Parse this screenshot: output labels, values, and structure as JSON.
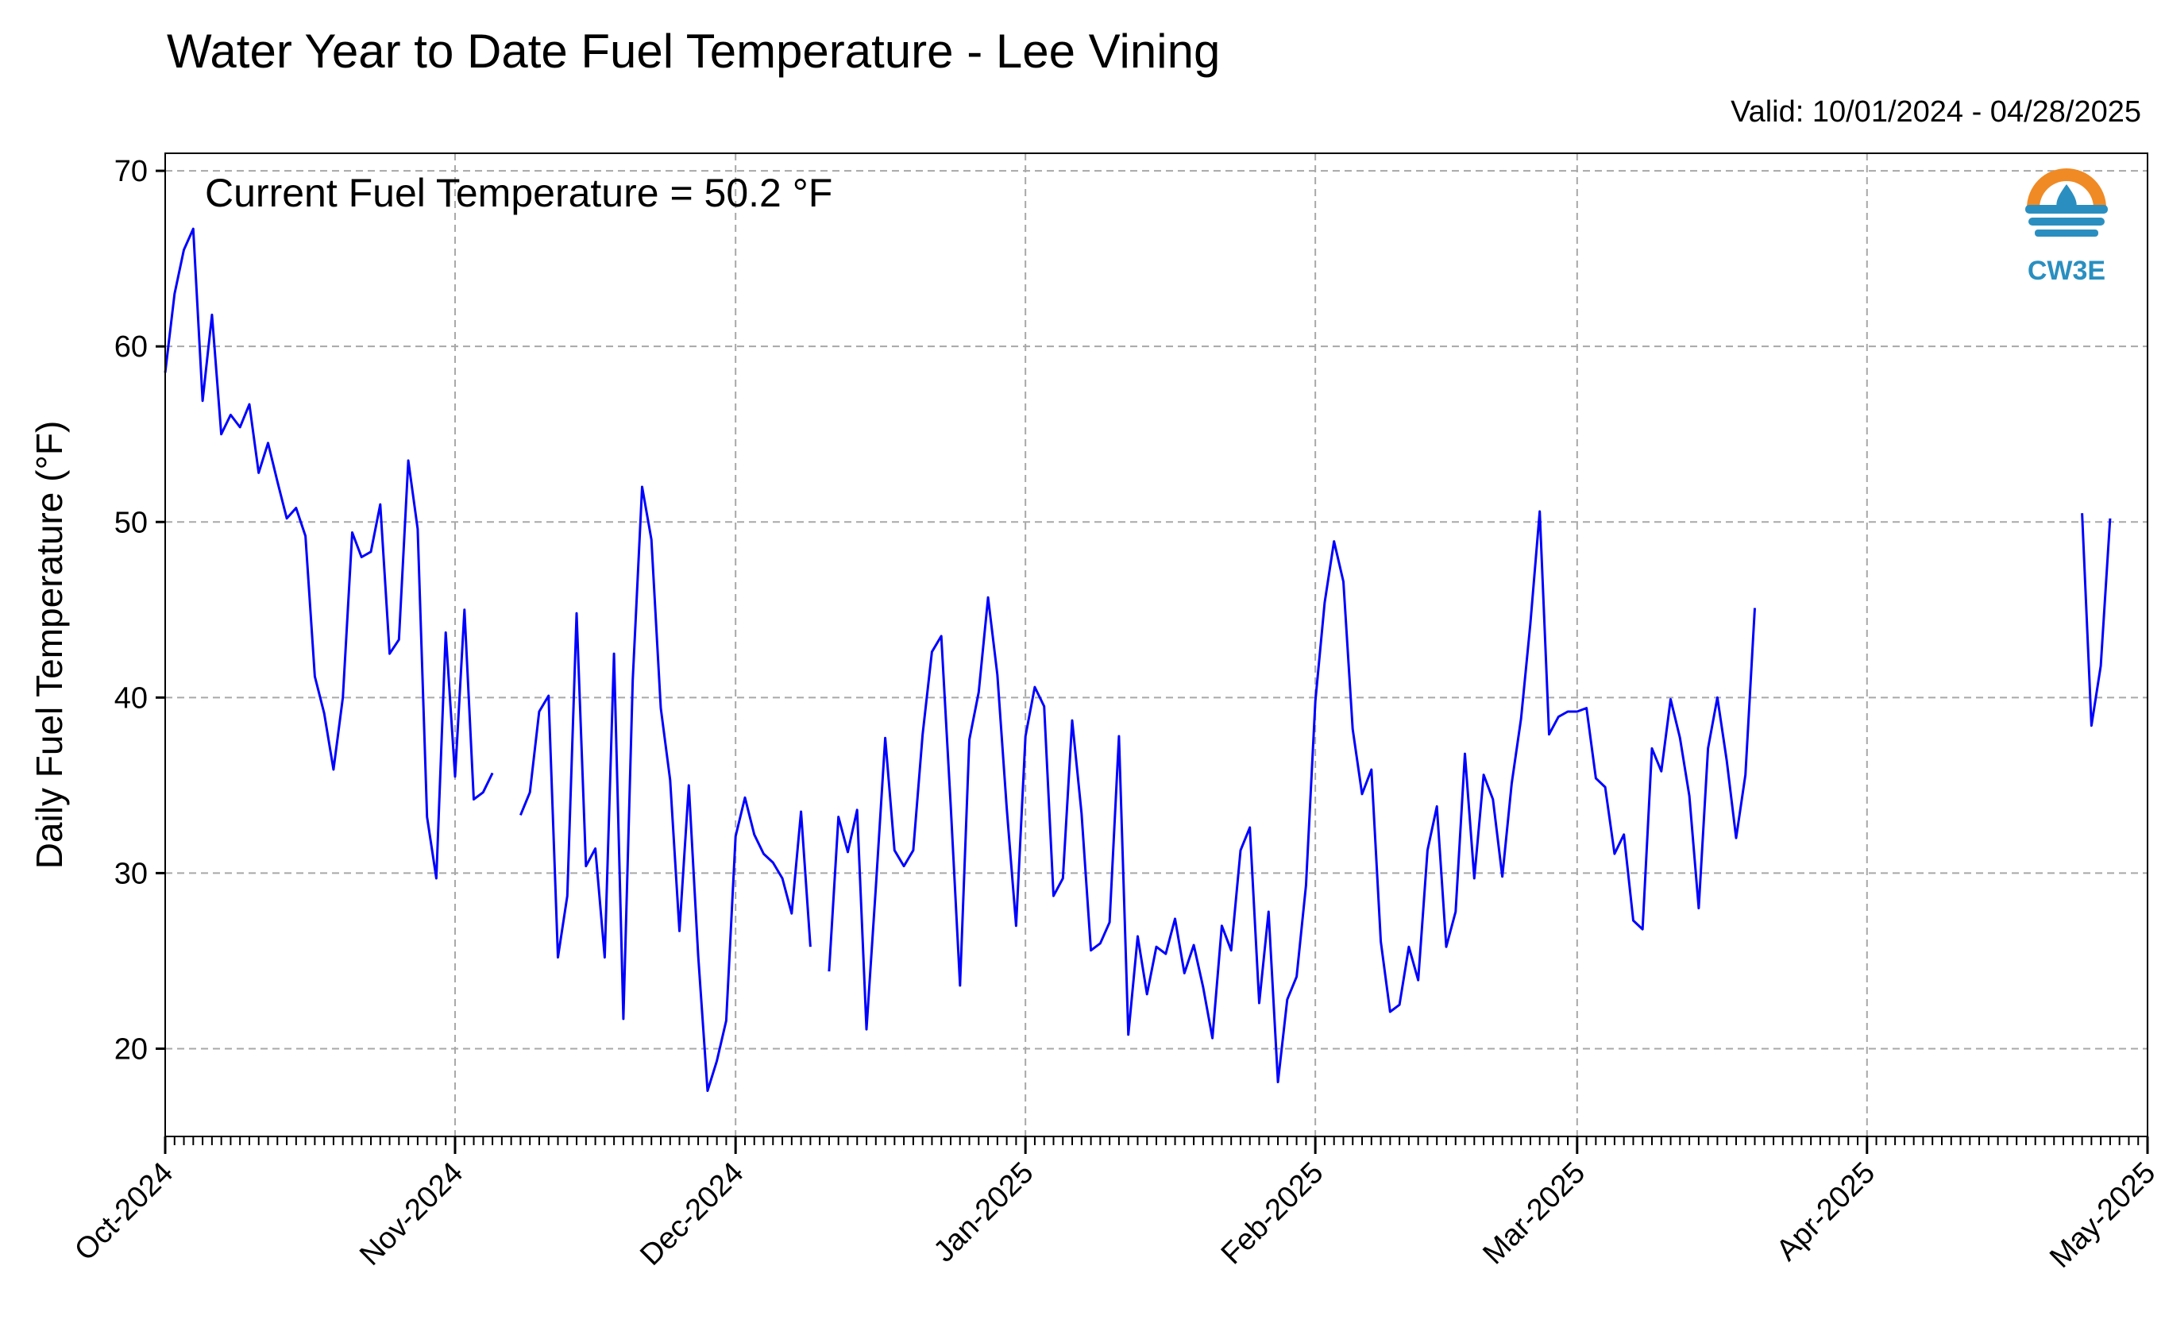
{
  "header": {
    "title": "Water Year to Date Fuel Temperature - Lee Vining",
    "valid": "Valid: 10/01/2024 - 04/28/2025"
  },
  "annotation": "Current Fuel Temperature = 50.2 °F",
  "logo": {
    "text": "CW3E",
    "colors": {
      "orange": "#f08a24",
      "blue": "#2a8fc0"
    }
  },
  "chart_data": {
    "type": "line",
    "title": "Water Year to Date Fuel Temperature - Lee Vining",
    "ylabel": "Daily Fuel Temperature (°F)",
    "xlabel": "",
    "ylim": [
      15,
      71
    ],
    "xlim": [
      "2024-10-01",
      "2025-05-01"
    ],
    "y_ticks": [
      20,
      30,
      40,
      50,
      60,
      70
    ],
    "x_tick_labels": [
      "Oct-2024",
      "Nov-2024",
      "Dec-2024",
      "Jan-2025",
      "Feb-2025",
      "Mar-2025",
      "Apr-2025",
      "May-2025"
    ],
    "x_tick_dates": [
      "2024-10-01",
      "2024-11-01",
      "2024-12-01",
      "2025-01-01",
      "2025-02-01",
      "2025-03-01",
      "2025-04-01",
      "2025-05-01"
    ],
    "grid": true,
    "line_color": "#0000ff",
    "series": [
      {
        "start_date": "2024-10-01",
        "values": [
          58.5,
          63.0,
          65.5,
          66.7,
          56.9,
          61.8,
          55.0,
          56.1,
          55.4,
          56.7,
          52.8,
          54.5,
          52.3,
          50.2,
          50.8,
          49.2,
          41.2,
          39.1,
          35.9,
          40.0,
          49.4,
          48.0,
          48.3,
          51.0,
          42.5,
          43.3,
          53.5,
          49.6,
          33.2,
          29.7,
          43.7,
          35.5,
          45.0,
          34.2,
          34.6,
          35.7
        ]
      },
      {
        "start_date": "2024-11-08",
        "values": [
          33.3,
          34.6,
          39.2,
          40.1,
          25.2,
          28.7,
          44.8,
          30.4,
          31.4,
          25.2,
          42.5,
          21.7,
          41.0,
          52.0,
          49.0,
          39.4,
          35.3,
          26.7,
          35.0,
          25.3,
          17.6,
          19.3,
          21.6,
          32.1,
          34.3,
          32.2,
          31.1,
          30.6,
          29.7,
          27.7,
          33.5,
          25.8
        ]
      },
      {
        "start_date": "2024-12-11",
        "values": [
          24.4,
          33.2,
          31.2,
          33.6,
          21.1,
          29.2,
          37.7,
          31.3,
          30.4,
          31.3,
          37.9,
          42.6,
          43.5,
          33.9,
          23.6,
          37.6,
          40.3,
          45.7,
          41.3,
          33.7,
          27.0,
          37.8,
          40.6,
          39.5,
          28.7,
          29.7,
          38.7,
          33.4,
          25.6,
          26.0,
          27.2,
          37.8,
          20.8,
          26.4,
          23.1,
          25.8,
          25.4,
          27.4,
          24.3,
          25.9,
          23.5,
          20.6,
          27.0,
          25.6,
          31.3,
          32.6,
          22.6,
          27.8,
          18.1,
          22.8,
          24.1,
          29.3,
          39.8,
          45.4,
          48.9,
          46.6,
          38.2,
          34.5,
          35.9,
          26.1,
          22.1,
          22.5,
          25.8,
          23.9,
          31.3,
          33.8,
          25.8,
          27.8,
          36.8,
          29.7,
          35.6,
          34.2,
          29.8,
          35.1,
          38.8,
          44.2,
          50.6,
          37.9,
          38.9,
          39.2,
          39.2,
          39.4,
          35.4,
          34.9,
          31.1,
          32.2,
          27.3,
          26.8,
          37.1,
          35.8,
          39.9,
          37.7,
          34.4,
          28.0,
          37.1,
          40.0,
          36.4,
          32.0,
          35.6,
          45.1
        ]
      },
      {
        "start_date": "2025-04-24",
        "values": [
          50.5,
          38.4,
          41.8,
          50.2
        ]
      }
    ]
  }
}
